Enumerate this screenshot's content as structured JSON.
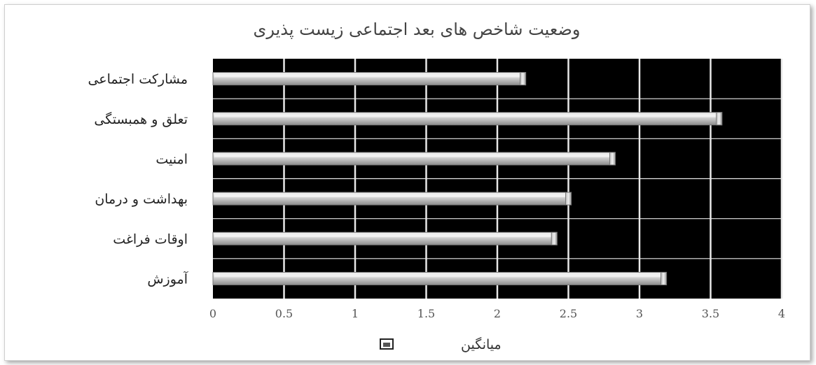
{
  "chart_data": {
    "type": "bar",
    "orientation": "horizontal",
    "title": "وضعیت شاخص های بعد اجتماعی زیست پذیری",
    "categories": [
      "مشارکت اجتماعی",
      "تعلق و همبستگی",
      "امنیت",
      "بهداشت و درمان",
      "اوقات فراغت",
      "آموزش"
    ],
    "series": [
      {
        "name": "میانگین",
        "values": [
          2.2,
          3.58,
          2.83,
          2.52,
          2.42,
          3.19
        ]
      }
    ],
    "xlim": [
      0,
      4
    ],
    "ticks": [
      "0",
      "0.5",
      "1",
      "1.5",
      "2",
      "2.5",
      "3",
      "3.5",
      "4"
    ],
    "grid": true,
    "plot_background": "#000000",
    "grid_color": "#e8e8e8",
    "bar_color": "#c8c8c8",
    "legend_position": "bottom"
  }
}
